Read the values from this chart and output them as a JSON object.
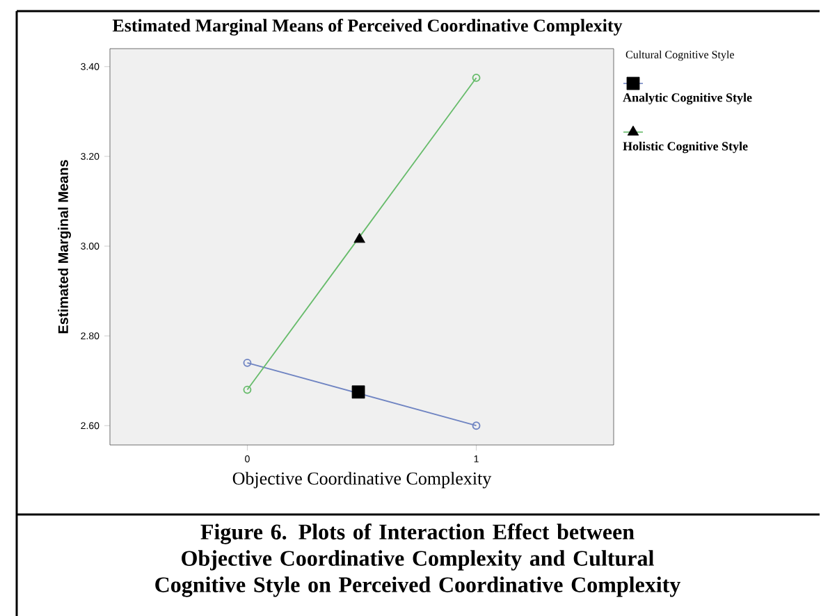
{
  "chart_data": {
    "type": "line",
    "title": "Estimated Marginal Means of Perceived Coordinative Complexity",
    "xlabel": "Objective Coordinative Complexity",
    "ylabel": "Estimated Marginal Means",
    "legend_title": "Cultural Cognitive Style",
    "x": [
      0,
      1
    ],
    "xlim": [
      -0.6,
      1.6
    ],
    "xticks": [
      0,
      1
    ],
    "ylim": [
      2.557,
      3.44
    ],
    "yticks": [
      {
        "value": 2.6,
        "label": "2.60"
      },
      {
        "value": 2.8,
        "label": "2.80"
      },
      {
        "value": 3.0,
        "label": "3.00"
      },
      {
        "value": 3.2,
        "label": "3.20"
      },
      {
        "value": 3.4,
        "label": "3.40"
      }
    ],
    "series": [
      {
        "name": "Analytic Cognitive Style",
        "color": "#6f84c2",
        "values": [
          2.74,
          2.6
        ],
        "marker": "circle"
      },
      {
        "name": "Holistic Cognitive Style",
        "color": "#66bb6a",
        "values": [
          2.68,
          3.375
        ],
        "marker": "circle"
      },
      {
        "type": "scatter",
        "x": [
          0.485
        ],
        "values": [
          2.675
        ],
        "color": "#000000",
        "marker": "square"
      },
      {
        "type": "scatter",
        "x": [
          0.49
        ],
        "values": [
          3.015
        ],
        "color": "#000000",
        "marker": "triangle"
      }
    ],
    "grid": false,
    "legend": "right",
    "annotations": [
      "Figure 6. Plots of Interaction Effect between Objective Coordinative Complexity and Cultural Cognitive Style on Perceived Coordinative Complexity"
    ]
  }
}
